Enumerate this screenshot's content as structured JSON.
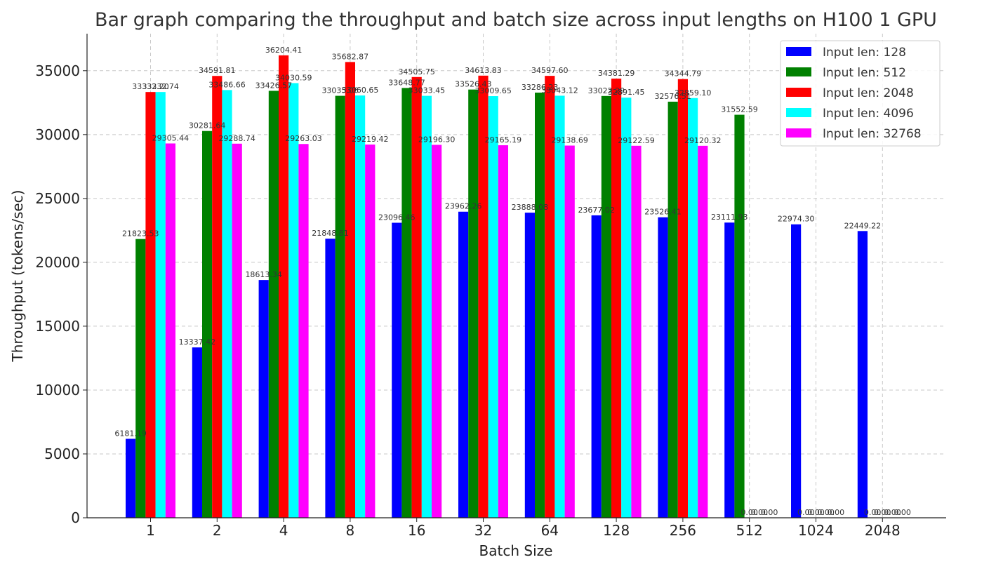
{
  "chart_data": {
    "type": "bar",
    "title": "Bar graph comparing the throughput and batch size across input lengths on H100 1 GPU",
    "xlabel": "Batch Size",
    "ylabel": "Throughput (tokens/sec)",
    "categories": [
      "1",
      "2",
      "4",
      "8",
      "16",
      "32",
      "64",
      "128",
      "256",
      "512",
      "1024",
      "2048"
    ],
    "ylim": [
      0,
      37900
    ],
    "yticks": [
      0,
      5000,
      10000,
      15000,
      20000,
      25000,
      30000,
      35000
    ],
    "grid": true,
    "legend_position": "top-right",
    "series": [
      {
        "name": "Input len: 128",
        "color": "#0000ff",
        "values": [
          6181.19,
          13337.42,
          18613.34,
          21848.81,
          23096.46,
          23962.26,
          23888.08,
          23677.02,
          23526.41,
          23111.93,
          22974.3,
          22449.22
        ]
      },
      {
        "name": "Input len: 512",
        "color": "#008000",
        "values": [
          21823.53,
          30281.64,
          33426.57,
          33035.06,
          33648.77,
          33526.43,
          33286.23,
          33022.29,
          32576.51,
          31552.59,
          0.0,
          0.0
        ]
      },
      {
        "name": "Input len: 2048",
        "color": "#ff0000",
        "values": [
          33332.2,
          34591.81,
          36204.41,
          35682.87,
          34505.75,
          34613.83,
          34597.6,
          34381.29,
          34344.79,
          0.0,
          0.0,
          0.0
        ]
      },
      {
        "name": "Input len: 4096",
        "color": "#00ffff",
        "values": [
          33332.74,
          33486.66,
          34030.59,
          33060.65,
          33033.45,
          33009.65,
          33043.12,
          32891.45,
          32859.1,
          0.0,
          0.0,
          0.0
        ]
      },
      {
        "name": "Input len: 32768",
        "color": "#ff00ff",
        "values": [
          29305.44,
          29288.74,
          29263.03,
          29219.42,
          29196.3,
          29165.19,
          29138.69,
          29122.59,
          29120.32,
          0.0,
          0.0,
          0.0
        ]
      }
    ]
  }
}
